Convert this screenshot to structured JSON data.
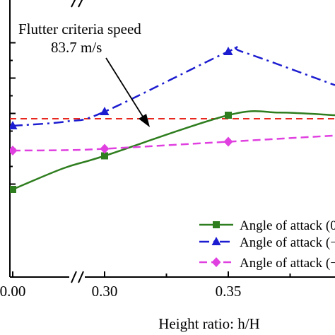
{
  "chart_data": {
    "type": "line",
    "xlabel": "Height ratio: h/H",
    "x_ticks": [
      "0.00",
      "0.30",
      "0.35"
    ],
    "axis_break": "between 0.00 and 0.30",
    "ylabel": "",
    "y_tick_labels_visible": false,
    "reference_line": {
      "label_line1": "Flutter criteria speed",
      "label_line2": "83.7 m/s",
      "value": 83.7,
      "color": "#e8281e",
      "style": "dashed"
    },
    "series": [
      {
        "name": "Angle of attack (0",
        "color": "#2e7d1e",
        "marker": "square",
        "line_style": "solid",
        "x": [
          0.0,
          0.3,
          0.35
        ],
        "y": [
          79.7,
          81.6,
          83.9
        ]
      },
      {
        "name": "Angle of attack (−",
        "color": "#1c1cd0",
        "marker": "triangle",
        "line_style": "dash-dot",
        "x": [
          0.0,
          0.3,
          0.35
        ],
        "y": [
          83.3,
          84.1,
          87.5
        ]
      },
      {
        "name": "Angle of attack (−",
        "color": "#e040e0",
        "marker": "diamond",
        "line_style": "dashed",
        "x": [
          0.0,
          0.3,
          0.35
        ],
        "y": [
          81.9,
          82.0,
          82.4
        ]
      }
    ],
    "legend_position": "bottom-right"
  }
}
